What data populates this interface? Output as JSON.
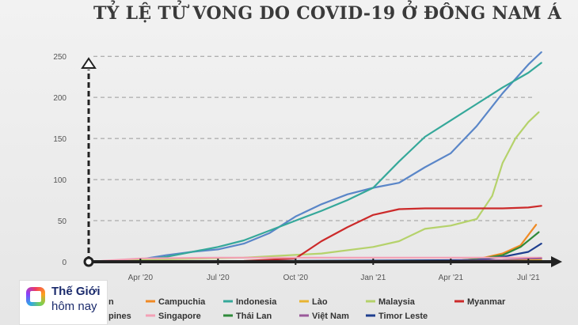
{
  "chart_data": {
    "type": "line",
    "title": "TỶ LỆ TỬ VONG DO COVID-19 Ở ĐÔNG NAM Á",
    "xlabel": "",
    "ylabel": "",
    "x_ticks": [
      "Apr '20",
      "Jul '20",
      "Oct '20",
      "Jan '21",
      "Apr '21",
      "Jul '21"
    ],
    "x_tick_months": [
      2,
      5,
      8,
      11,
      14,
      17
    ],
    "xlim_months": [
      0,
      18
    ],
    "ylim": [
      0,
      255
    ],
    "y_ticks": [
      0,
      50,
      100,
      150,
      200,
      250
    ],
    "grid": "dashed-horizontal",
    "series": [
      {
        "name": "Philippines",
        "color": "#5a86c8",
        "points": [
          [
            0,
            0
          ],
          [
            2,
            3
          ],
          [
            3,
            8
          ],
          [
            4,
            12
          ],
          [
            5,
            15
          ],
          [
            6,
            22
          ],
          [
            7,
            35
          ],
          [
            8,
            55
          ],
          [
            9,
            70
          ],
          [
            10,
            82
          ],
          [
            11,
            90
          ],
          [
            12,
            96
          ],
          [
            13,
            115
          ],
          [
            14,
            132
          ],
          [
            15,
            165
          ],
          [
            16,
            205
          ],
          [
            17,
            240
          ],
          [
            17.5,
            255
          ]
        ]
      },
      {
        "name": "Indonesia",
        "color": "#35a89a",
        "points": [
          [
            0,
            0
          ],
          [
            2,
            2
          ],
          [
            3,
            6
          ],
          [
            4,
            12
          ],
          [
            5,
            18
          ],
          [
            6,
            26
          ],
          [
            7,
            38
          ],
          [
            8,
            50
          ],
          [
            9,
            62
          ],
          [
            10,
            75
          ],
          [
            11,
            90
          ],
          [
            12,
            122
          ],
          [
            13,
            152
          ],
          [
            14,
            172
          ],
          [
            15,
            192
          ],
          [
            16,
            212
          ],
          [
            17,
            230
          ],
          [
            17.5,
            242
          ]
        ]
      },
      {
        "name": "Malaysia",
        "color": "#b5d26b",
        "points": [
          [
            0,
            0
          ],
          [
            3,
            3
          ],
          [
            6,
            5
          ],
          [
            9,
            10
          ],
          [
            11,
            18
          ],
          [
            12,
            25
          ],
          [
            13,
            40
          ],
          [
            14,
            44
          ],
          [
            15,
            52
          ],
          [
            15.6,
            80
          ],
          [
            16,
            120
          ],
          [
            16.5,
            150
          ],
          [
            17,
            170
          ],
          [
            17.4,
            182
          ]
        ]
      },
      {
        "name": "Myanmar",
        "color": "#cc2a2a",
        "points": [
          [
            0,
            0
          ],
          [
            6,
            1
          ],
          [
            8,
            4
          ],
          [
            9,
            25
          ],
          [
            10,
            42
          ],
          [
            11,
            57
          ],
          [
            12,
            64
          ],
          [
            13,
            65
          ],
          [
            14,
            65
          ],
          [
            15,
            65
          ],
          [
            16,
            65
          ],
          [
            17,
            66
          ],
          [
            17.5,
            68
          ]
        ]
      },
      {
        "name": "Campuchia",
        "color": "#f08a24",
        "points": [
          [
            0,
            0
          ],
          [
            14,
            1
          ],
          [
            15,
            3
          ],
          [
            16,
            10
          ],
          [
            16.7,
            20
          ],
          [
            17.3,
            45
          ]
        ]
      },
      {
        "name": "Thái Lan",
        "color": "#2f8a3a",
        "points": [
          [
            0,
            0
          ],
          [
            14,
            1
          ],
          [
            15,
            3
          ],
          [
            16,
            8
          ],
          [
            16.7,
            18
          ],
          [
            17.4,
            36
          ]
        ]
      },
      {
        "name": "Timor Leste",
        "color": "#1f3f8f",
        "points": [
          [
            0,
            0
          ],
          [
            15,
            2
          ],
          [
            16,
            6
          ],
          [
            17,
            12
          ],
          [
            17.5,
            22
          ]
        ]
      },
      {
        "name": "Singapore",
        "color": "#f3a0b5",
        "points": [
          [
            0,
            0
          ],
          [
            2,
            4
          ],
          [
            5,
            5
          ],
          [
            9,
            5
          ],
          [
            12,
            5
          ],
          [
            15,
            5
          ],
          [
            17.5,
            5
          ]
        ]
      },
      {
        "name": "Việt Nam",
        "color": "#9a5a9a",
        "points": [
          [
            0,
            0
          ],
          [
            10,
            0.5
          ],
          [
            14,
            1
          ],
          [
            16,
            2
          ],
          [
            17.5,
            4
          ]
        ]
      },
      {
        "name": "Lào",
        "color": "#e8b432",
        "points": [
          [
            0,
            0
          ],
          [
            14,
            0.5
          ],
          [
            16,
            1
          ],
          [
            17.5,
            2
          ]
        ]
      }
    ],
    "legend": {
      "placement": "bottom",
      "row1": [
        "Campuchia",
        "Indonesia",
        "Lào",
        "Malaysia",
        "Myanmar"
      ],
      "row2": [
        "Singapore",
        "Thái Lan",
        "Việt Nam",
        "Timor Leste"
      ],
      "clipped_left_row1": "n",
      "clipped_left_row2": "pines"
    }
  },
  "logo": {
    "line1": "Thế Giới",
    "line2": "hôm nay"
  }
}
